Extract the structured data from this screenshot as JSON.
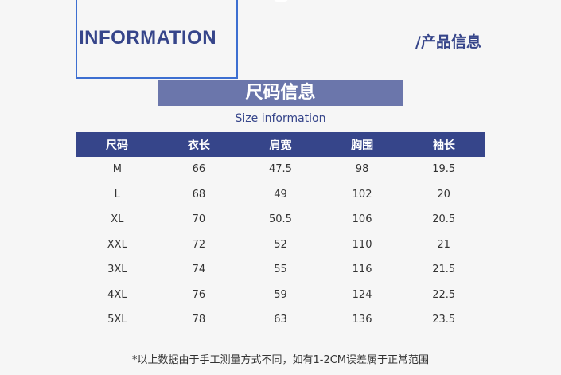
{
  "header": {
    "title": "INFORMATION",
    "subtitle": "/产品信息"
  },
  "banner": {
    "title": "尺码信息",
    "subtitle": "Size information"
  },
  "table": {
    "columns": [
      "尺码",
      "衣长",
      "肩宽",
      "胸围",
      "袖长"
    ],
    "rows": [
      [
        "M",
        66,
        47.5,
        98,
        19.5
      ],
      [
        "L",
        68,
        49,
        102,
        20
      ],
      [
        "XL",
        70,
        50.5,
        106,
        20.5
      ],
      [
        "XXL",
        72,
        52,
        110,
        21
      ],
      [
        "3XL",
        74,
        55,
        116,
        21.5
      ],
      [
        "4XL",
        76,
        59,
        124,
        22.5
      ],
      [
        "5XL",
        78,
        63,
        136,
        23.5
      ]
    ]
  },
  "footnote": "*以上数据由于手工测量方式不同，如有1-2CM误差属于正常范围"
}
